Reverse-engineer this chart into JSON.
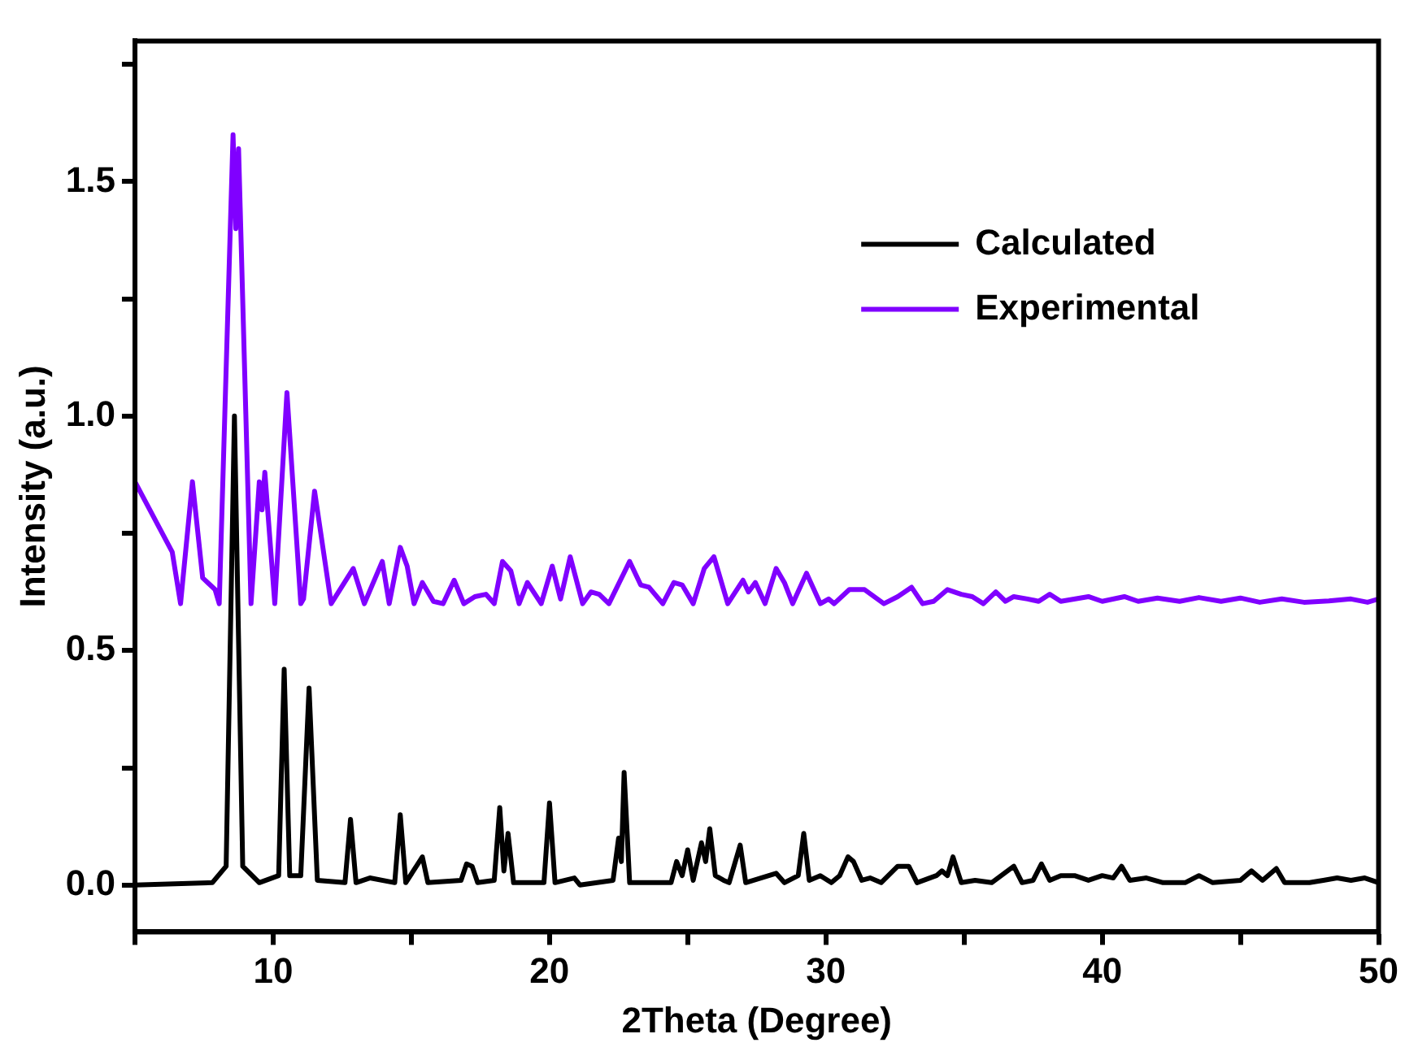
{
  "chart_data": {
    "type": "line",
    "xlabel": "2Theta (Degree)",
    "ylabel": "Intensity (a.u.)",
    "xlim": [
      5,
      50
    ],
    "ylim": [
      -0.1,
      1.8
    ],
    "xticks": [
      {
        "value": 5,
        "label": null
      },
      10,
      {
        "value": 15,
        "label": null
      },
      20,
      {
        "value": 25,
        "label": null
      },
      30,
      {
        "value": 35,
        "label": null
      },
      40,
      {
        "value": 45,
        "label": null
      },
      50
    ],
    "yticks": [
      {
        "value": 0,
        "label": "0.0"
      },
      {
        "value": 0.25,
        "label": null
      },
      {
        "value": 0.5,
        "label": "0.5"
      },
      {
        "value": 0.75,
        "label": null
      },
      {
        "value": 1,
        "label": "1.0"
      },
      {
        "value": 1.25,
        "label": null
      },
      {
        "value": 1.5,
        "label": "1.5"
      },
      {
        "value": 1.75,
        "label": null
      }
    ],
    "legend": "top right",
    "marker": "none",
    "line_style": "solid",
    "series": [
      {
        "name": "Calculated",
        "color": "#000000",
        "x": [
          5,
          7.8,
          8.3,
          8.6,
          8.9,
          9.5,
          10.2,
          10.4,
          10.6,
          11.0,
          11.3,
          11.6,
          12.6,
          12.8,
          13.0,
          13.5,
          14.4,
          14.6,
          14.8,
          15.4,
          15.6,
          16.8,
          17.0,
          17.2,
          17.4,
          18.0,
          18.2,
          18.35,
          18.5,
          18.7,
          19.8,
          20.0,
          20.2,
          20.9,
          21.1,
          22.3,
          22.5,
          22.6,
          22.7,
          22.9,
          24.4,
          24.6,
          24.8,
          25.0,
          25.2,
          25.5,
          25.65,
          25.8,
          26.0,
          26.3,
          26.5,
          26.9,
          27.1,
          28.2,
          28.5,
          29.0,
          29.2,
          29.4,
          29.8,
          30.2,
          30.5,
          30.8,
          31.0,
          31.3,
          31.6,
          32.0,
          32.6,
          33.0,
          33.3,
          34.0,
          34.2,
          34.4,
          34.6,
          34.9,
          35.4,
          36.0,
          36.8,
          37.1,
          37.5,
          37.8,
          38.1,
          38.5,
          39.0,
          39.5,
          40.0,
          40.4,
          40.7,
          41.0,
          41.6,
          42.2,
          43.0,
          43.5,
          44.0,
          45.0,
          45.4,
          45.8,
          46.3,
          46.6,
          47.5,
          48.0,
          48.5,
          49.0,
          49.5,
          50
        ],
        "values": [
          0,
          0.005,
          0.04,
          1.0,
          0.04,
          0.005,
          0.02,
          0.46,
          0.02,
          0.02,
          0.42,
          0.01,
          0.005,
          0.14,
          0.005,
          0.015,
          0.005,
          0.15,
          0.005,
          0.06,
          0.005,
          0.01,
          0.045,
          0.04,
          0.005,
          0.01,
          0.165,
          0.03,
          0.11,
          0.005,
          0.005,
          0.175,
          0.005,
          0.015,
          0,
          0.01,
          0.1,
          0.05,
          0.24,
          0.005,
          0.005,
          0.05,
          0.02,
          0.075,
          0.01,
          0.09,
          0.05,
          0.12,
          0.02,
          0.01,
          0.005,
          0.085,
          0.005,
          0.025,
          0.005,
          0.02,
          0.11,
          0.01,
          0.02,
          0.005,
          0.02,
          0.06,
          0.05,
          0.01,
          0.015,
          0.005,
          0.04,
          0.04,
          0.005,
          0.02,
          0.03,
          0.02,
          0.06,
          0.005,
          0.01,
          0.005,
          0.04,
          0.005,
          0.01,
          0.045,
          0.01,
          0.02,
          0.02,
          0.01,
          0.02,
          0.015,
          0.04,
          0.01,
          0.015,
          0.005,
          0.005,
          0.02,
          0.005,
          0.01,
          0.03,
          0.01,
          0.035,
          0.005,
          0.005,
          0.01,
          0.015,
          0.01,
          0.015,
          0.005
        ]
      },
      {
        "name": "Experimental",
        "color": "#8000ff",
        "x": [
          5,
          6.35,
          6.65,
          7.08,
          7.45,
          7.9,
          8.05,
          8.55,
          8.65,
          8.75,
          9.2,
          9.5,
          9.6,
          9.7,
          10.06,
          10.5,
          11.0,
          11.1,
          11.5,
          12.1,
          12.9,
          13.3,
          13.95,
          14.2,
          14.6,
          14.85,
          15.1,
          15.4,
          15.8,
          16.15,
          16.55,
          16.9,
          17.3,
          17.7,
          18.0,
          18.3,
          18.6,
          18.9,
          19.2,
          19.7,
          20.1,
          20.4,
          20.75,
          21.2,
          21.5,
          21.8,
          22.15,
          22.9,
          23.3,
          23.6,
          24.1,
          24.5,
          24.8,
          25.2,
          25.6,
          25.95,
          26.45,
          27.0,
          27.2,
          27.45,
          27.8,
          28.2,
          28.5,
          28.8,
          29.3,
          29.8,
          30.1,
          30.3,
          30.85,
          31.4,
          32.1,
          32.6,
          33.1,
          33.5,
          33.9,
          34.4,
          34.9,
          35.3,
          35.7,
          36.15,
          36.5,
          36.8,
          37.3,
          37.7,
          38.1,
          38.5,
          39.5,
          40.0,
          40.8,
          41.3,
          42.0,
          42.8,
          43.5,
          44.3,
          45.0,
          45.7,
          46.5,
          47.3,
          48.2,
          49.0,
          49.6,
          50
        ],
        "values": [
          0.86,
          0.71,
          0.6,
          0.86,
          0.655,
          0.63,
          0.6,
          1.6,
          1.4,
          1.57,
          0.6,
          0.86,
          0.8,
          0.88,
          0.6,
          1.05,
          0.6,
          0.61,
          0.84,
          0.6,
          0.675,
          0.6,
          0.69,
          0.6,
          0.72,
          0.68,
          0.6,
          0.645,
          0.605,
          0.6,
          0.65,
          0.6,
          0.615,
          0.62,
          0.6,
          0.69,
          0.67,
          0.6,
          0.645,
          0.6,
          0.68,
          0.61,
          0.7,
          0.6,
          0.625,
          0.62,
          0.6,
          0.69,
          0.64,
          0.635,
          0.6,
          0.645,
          0.64,
          0.6,
          0.675,
          0.7,
          0.6,
          0.65,
          0.625,
          0.645,
          0.6,
          0.675,
          0.645,
          0.6,
          0.665,
          0.6,
          0.61,
          0.6,
          0.63,
          0.63,
          0.6,
          0.615,
          0.635,
          0.6,
          0.605,
          0.63,
          0.62,
          0.615,
          0.6,
          0.625,
          0.605,
          0.615,
          0.61,
          0.605,
          0.62,
          0.605,
          0.615,
          0.605,
          0.615,
          0.605,
          0.612,
          0.605,
          0.613,
          0.605,
          0.612,
          0.603,
          0.61,
          0.603,
          0.606,
          0.61,
          0.603,
          0.61
        ]
      }
    ]
  }
}
